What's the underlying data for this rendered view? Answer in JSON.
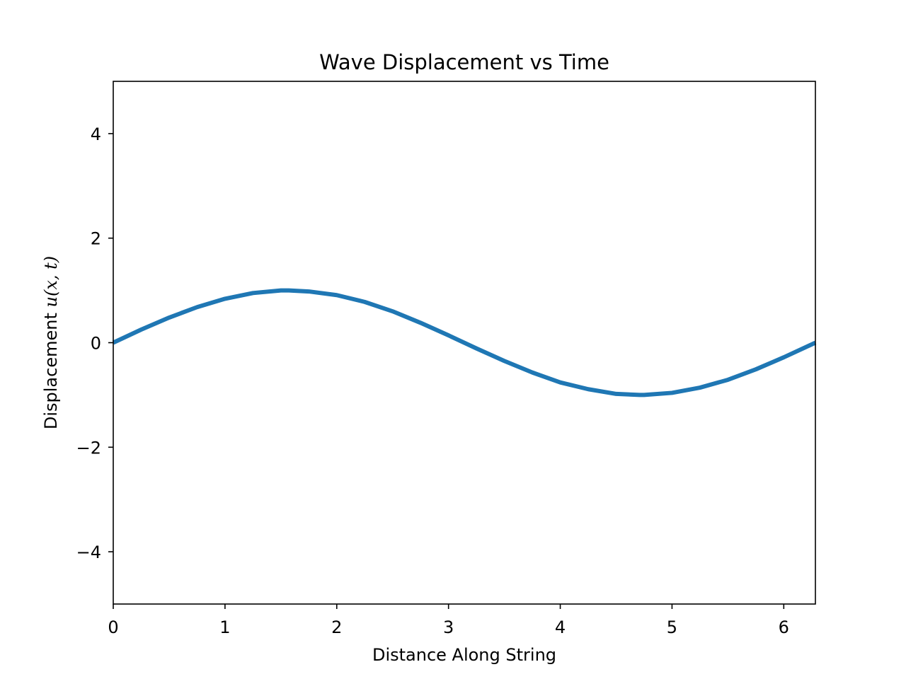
{
  "chart_data": {
    "type": "line",
    "title": "Wave Displacement vs Time",
    "xlabel": "Distance Along String",
    "ylabel": {
      "prefix": "Displacement ",
      "math": "u(x, t)"
    },
    "xlim": [
      0,
      6.283
    ],
    "ylim": [
      -5,
      5
    ],
    "xticks": [
      0,
      1,
      2,
      3,
      4,
      5,
      6
    ],
    "xtick_labels": [
      "0",
      "1",
      "2",
      "3",
      "4",
      "5",
      "6"
    ],
    "yticks": [
      -4,
      -2,
      0,
      2,
      4
    ],
    "ytick_labels": [
      "−4",
      "−2",
      "0",
      "2",
      "4"
    ],
    "grid": false,
    "series": [
      {
        "color": "#1f77b4",
        "x": [
          0,
          0.25,
          0.5,
          0.75,
          1.0,
          1.25,
          1.5,
          1.571,
          1.75,
          2.0,
          2.25,
          2.5,
          2.75,
          3.0,
          3.25,
          3.5,
          3.75,
          4.0,
          4.25,
          4.5,
          4.712,
          4.75,
          5.0,
          5.25,
          5.5,
          5.75,
          6.0,
          6.283
        ],
        "y": [
          0,
          0.25,
          0.48,
          0.68,
          0.84,
          0.95,
          1.0,
          1.0,
          0.98,
          0.91,
          0.78,
          0.6,
          0.38,
          0.14,
          -0.11,
          -0.35,
          -0.57,
          -0.76,
          -0.89,
          -0.98,
          -1.0,
          -1.0,
          -0.96,
          -0.86,
          -0.71,
          -0.51,
          -0.28,
          0
        ]
      }
    ]
  }
}
